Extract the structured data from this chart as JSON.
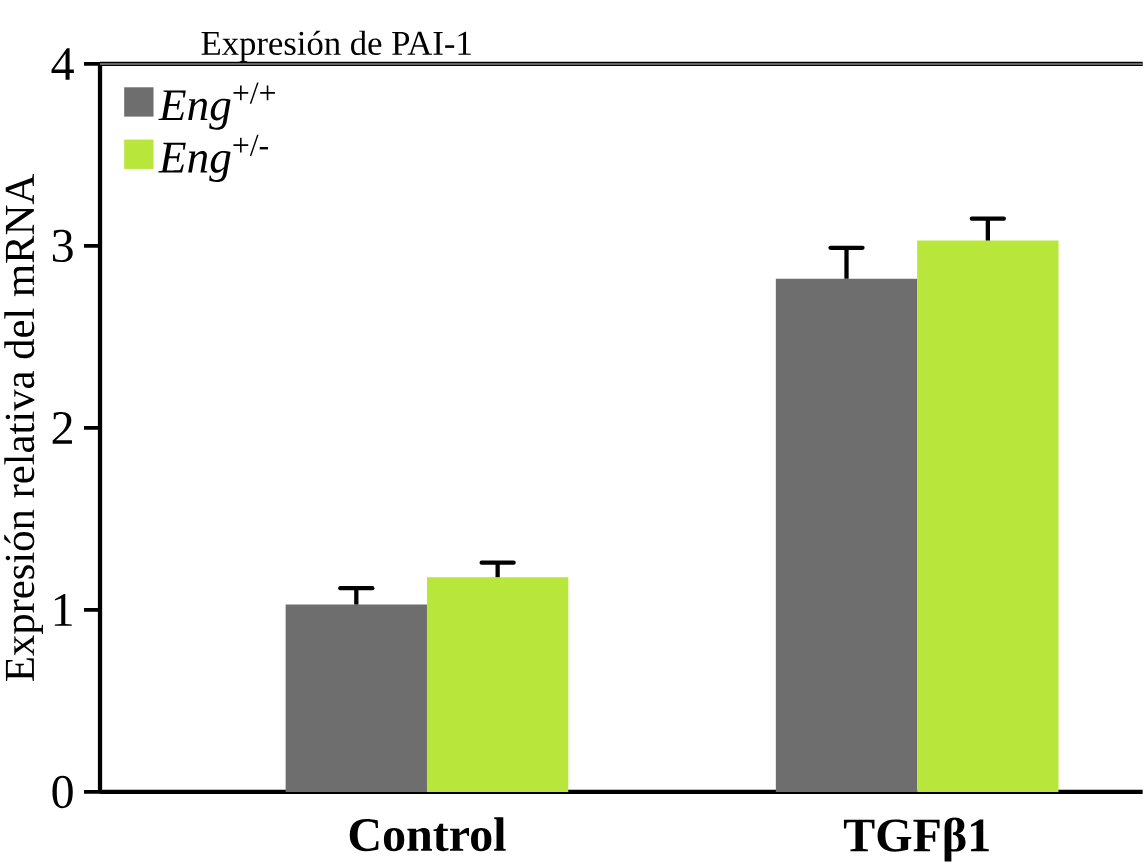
{
  "chart_data": {
    "type": "bar",
    "title": "Expresión de PAI-1",
    "ylabel": "Expresión relativa del mRNA",
    "categories": [
      "**Control**",
      "**TGFβ1**"
    ],
    "series": [
      {
        "name": "*Eng*$^{+/+}$",
        "color": "#6e6e6e",
        "values": [
          1.03,
          2.82
        ],
        "errors": [
          [
            1.03,
            1.12
          ],
          [
            2.82,
            2.99
          ]
        ]
      },
      {
        "name": "*Eng*$^{+/-}$",
        "color": "#b8e63a",
        "values": [
          1.18,
          3.03
        ],
        "errors": [
          [
            1.18,
            1.26
          ],
          [
            3.03,
            3.15
          ]
        ]
      }
    ],
    "ylim": [
      0,
      4
    ],
    "yticks": [
      0,
      1,
      2,
      3,
      4
    ],
    "grid": false,
    "legend": "top left"
  }
}
